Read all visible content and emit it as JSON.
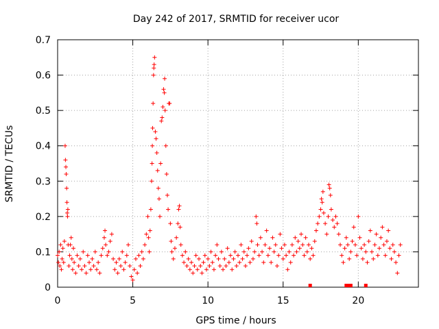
{
  "chart_data": {
    "type": "scatter",
    "title": "Day 242 of 2017, SRMTID for receiver ucor",
    "xlabel": "GPS time / hours",
    "ylabel": "SRMTID / TECUs",
    "xlim": [
      0,
      24
    ],
    "ylim": [
      0,
      0.7
    ],
    "grid": true,
    "marker": "+",
    "x_ticks": [
      0,
      5,
      10,
      15,
      20
    ],
    "x_tick_labels": [
      "0",
      "5",
      "10",
      "15",
      "20"
    ],
    "y_ticks": [
      0,
      0.1,
      0.2,
      0.3,
      0.4,
      0.5,
      0.6,
      0.7
    ],
    "y_tick_labels": [
      "0",
      "0.1",
      "0.2",
      "0.3",
      "0.4",
      "0.5",
      "0.6",
      "0.7"
    ],
    "series": [
      {
        "name": "SRMTID",
        "color": "#ff0000",
        "points": [
          [
            0.0,
            0.09
          ],
          [
            0.05,
            0.07
          ],
          [
            0.1,
            0.1
          ],
          [
            0.15,
            0.06
          ],
          [
            0.2,
            0.12
          ],
          [
            0.25,
            0.05
          ],
          [
            0.3,
            0.08
          ],
          [
            0.35,
            0.11
          ],
          [
            0.4,
            0.07
          ],
          [
            0.45,
            0.13
          ],
          [
            0.5,
            0.4
          ],
          [
            0.52,
            0.36
          ],
          [
            0.55,
            0.34
          ],
          [
            0.57,
            0.32
          ],
          [
            0.6,
            0.28
          ],
          [
            0.62,
            0.24
          ],
          [
            0.64,
            0.21
          ],
          [
            0.66,
            0.2
          ],
          [
            0.68,
            0.22
          ],
          [
            0.7,
            0.12
          ],
          [
            0.75,
            0.06
          ],
          [
            0.8,
            0.09
          ],
          [
            0.85,
            0.12
          ],
          [
            0.9,
            0.14
          ],
          [
            0.95,
            0.08
          ],
          [
            1.0,
            0.05
          ],
          [
            1.05,
            0.11
          ],
          [
            1.1,
            0.07
          ],
          [
            1.2,
            0.04
          ],
          [
            1.3,
            0.09
          ],
          [
            1.4,
            0.06
          ],
          [
            1.5,
            0.08
          ],
          [
            1.6,
            0.05
          ],
          [
            1.7,
            0.1
          ],
          [
            1.8,
            0.06
          ],
          [
            1.9,
            0.04
          ],
          [
            2.0,
            0.09
          ],
          [
            2.1,
            0.07
          ],
          [
            2.2,
            0.05
          ],
          [
            2.3,
            0.08
          ],
          [
            2.4,
            0.06
          ],
          [
            2.5,
            0.1
          ],
          [
            2.6,
            0.05
          ],
          [
            2.7,
            0.07
          ],
          [
            2.8,
            0.04
          ],
          [
            2.9,
            0.09
          ],
          [
            3.0,
            0.11
          ],
          [
            3.1,
            0.14
          ],
          [
            3.15,
            0.16
          ],
          [
            3.2,
            0.12
          ],
          [
            3.3,
            0.09
          ],
          [
            3.4,
            0.1
          ],
          [
            3.5,
            0.13
          ],
          [
            3.6,
            0.15
          ],
          [
            3.7,
            0.08
          ],
          [
            3.8,
            0.05
          ],
          [
            3.9,
            0.07
          ],
          [
            4.0,
            0.04
          ],
          [
            4.1,
            0.08
          ],
          [
            4.2,
            0.06
          ],
          [
            4.3,
            0.1
          ],
          [
            4.4,
            0.05
          ],
          [
            4.5,
            0.07
          ],
          [
            4.6,
            0.09
          ],
          [
            4.7,
            0.12
          ],
          [
            4.8,
            0.06
          ],
          [
            4.9,
            0.03
          ],
          [
            5.0,
            0.02
          ],
          [
            5.1,
            0.05
          ],
          [
            5.2,
            0.08
          ],
          [
            5.3,
            0.04
          ],
          [
            5.4,
            0.09
          ],
          [
            5.5,
            0.06
          ],
          [
            5.6,
            0.1
          ],
          [
            5.7,
            0.08
          ],
          [
            5.8,
            0.12
          ],
          [
            5.9,
            0.15
          ],
          [
            6.0,
            0.2
          ],
          [
            6.05,
            0.14
          ],
          [
            6.1,
            0.1
          ],
          [
            6.15,
            0.16
          ],
          [
            6.2,
            0.22
          ],
          [
            6.25,
            0.3
          ],
          [
            6.28,
            0.35
          ],
          [
            6.3,
            0.4
          ],
          [
            6.32,
            0.45
          ],
          [
            6.35,
            0.52
          ],
          [
            6.38,
            0.6
          ],
          [
            6.4,
            0.62
          ],
          [
            6.42,
            0.63
          ],
          [
            6.45,
            0.65
          ],
          [
            6.5,
            0.44
          ],
          [
            6.55,
            0.42
          ],
          [
            6.6,
            0.38
          ],
          [
            6.65,
            0.33
          ],
          [
            6.7,
            0.28
          ],
          [
            6.75,
            0.25
          ],
          [
            6.8,
            0.2
          ],
          [
            6.85,
            0.35
          ],
          [
            6.9,
            0.47
          ],
          [
            6.95,
            0.48
          ],
          [
            7.0,
            0.51
          ],
          [
            7.05,
            0.56
          ],
          [
            7.1,
            0.55
          ],
          [
            7.12,
            0.59
          ],
          [
            7.15,
            0.5
          ],
          [
            7.2,
            0.4
          ],
          [
            7.25,
            0.32
          ],
          [
            7.3,
            0.26
          ],
          [
            7.35,
            0.22
          ],
          [
            7.4,
            0.52
          ],
          [
            7.45,
            0.52
          ],
          [
            7.5,
            0.18
          ],
          [
            7.55,
            0.13
          ],
          [
            7.6,
            0.1
          ],
          [
            7.7,
            0.08
          ],
          [
            7.8,
            0.11
          ],
          [
            7.9,
            0.14
          ],
          [
            8.0,
            0.18
          ],
          [
            8.05,
            0.22
          ],
          [
            8.1,
            0.23
          ],
          [
            8.15,
            0.17
          ],
          [
            8.2,
            0.12
          ],
          [
            8.3,
            0.09
          ],
          [
            8.4,
            0.07
          ],
          [
            8.5,
            0.1
          ],
          [
            8.6,
            0.06
          ],
          [
            8.7,
            0.08
          ],
          [
            8.8,
            0.05
          ],
          [
            8.9,
            0.07
          ],
          [
            9.0,
            0.04
          ],
          [
            9.1,
            0.06
          ],
          [
            9.2,
            0.09
          ],
          [
            9.3,
            0.05
          ],
          [
            9.4,
            0.08
          ],
          [
            9.5,
            0.06
          ],
          [
            9.6,
            0.04
          ],
          [
            9.7,
            0.07
          ],
          [
            9.8,
            0.09
          ],
          [
            9.9,
            0.05
          ],
          [
            10.0,
            0.08
          ],
          [
            10.1,
            0.06
          ],
          [
            10.2,
            0.1
          ],
          [
            10.3,
            0.07
          ],
          [
            10.4,
            0.05
          ],
          [
            10.5,
            0.09
          ],
          [
            10.6,
            0.12
          ],
          [
            10.7,
            0.08
          ],
          [
            10.8,
            0.06
          ],
          [
            10.9,
            0.1
          ],
          [
            11.0,
            0.05
          ],
          [
            11.1,
            0.08
          ],
          [
            11.2,
            0.06
          ],
          [
            11.3,
            0.11
          ],
          [
            11.4,
            0.07
          ],
          [
            11.5,
            0.09
          ],
          [
            11.6,
            0.05
          ],
          [
            11.7,
            0.08
          ],
          [
            11.8,
            0.1
          ],
          [
            11.9,
            0.06
          ],
          [
            12.0,
            0.09
          ],
          [
            12.1,
            0.07
          ],
          [
            12.2,
            0.12
          ],
          [
            12.3,
            0.08
          ],
          [
            12.4,
            0.1
          ],
          [
            12.5,
            0.06
          ],
          [
            12.6,
            0.09
          ],
          [
            12.7,
            0.11
          ],
          [
            12.8,
            0.07
          ],
          [
            12.9,
            0.13
          ],
          [
            13.0,
            0.08
          ],
          [
            13.1,
            0.1
          ],
          [
            13.2,
            0.2
          ],
          [
            13.25,
            0.18
          ],
          [
            13.3,
            0.12
          ],
          [
            13.4,
            0.09
          ],
          [
            13.5,
            0.14
          ],
          [
            13.6,
            0.1
          ],
          [
            13.7,
            0.07
          ],
          [
            13.8,
            0.12
          ],
          [
            13.9,
            0.16
          ],
          [
            14.0,
            0.09
          ],
          [
            14.1,
            0.11
          ],
          [
            14.2,
            0.07
          ],
          [
            14.3,
            0.14
          ],
          [
            14.4,
            0.1
          ],
          [
            14.5,
            0.12
          ],
          [
            14.6,
            0.06
          ],
          [
            14.7,
            0.09
          ],
          [
            14.8,
            0.15
          ],
          [
            14.9,
            0.11
          ],
          [
            15.0,
            0.08
          ],
          [
            15.1,
            0.12
          ],
          [
            15.2,
            0.09
          ],
          [
            15.3,
            0.05
          ],
          [
            15.4,
            0.1
          ],
          [
            15.5,
            0.07
          ],
          [
            15.6,
            0.12
          ],
          [
            15.7,
            0.09
          ],
          [
            15.8,
            0.14
          ],
          [
            15.9,
            0.1
          ],
          [
            16.0,
            0.13
          ],
          [
            16.1,
            0.11
          ],
          [
            16.2,
            0.15
          ],
          [
            16.3,
            0.12
          ],
          [
            16.4,
            0.09
          ],
          [
            16.5,
            0.14
          ],
          [
            16.6,
            0.1
          ],
          [
            16.7,
            0.12
          ],
          [
            16.8,
            0.08
          ],
          [
            16.9,
            0.11
          ],
          [
            17.0,
            0.09
          ],
          [
            17.1,
            0.13
          ],
          [
            17.2,
            0.16
          ],
          [
            17.3,
            0.18
          ],
          [
            17.4,
            0.2
          ],
          [
            17.5,
            0.22
          ],
          [
            17.55,
            0.25
          ],
          [
            17.6,
            0.24
          ],
          [
            17.65,
            0.27
          ],
          [
            17.7,
            0.21
          ],
          [
            17.8,
            0.18
          ],
          [
            17.9,
            0.15
          ],
          [
            18.0,
            0.2
          ],
          [
            18.05,
            0.29
          ],
          [
            18.1,
            0.28
          ],
          [
            18.15,
            0.26
          ],
          [
            18.2,
            0.22
          ],
          [
            18.3,
            0.19
          ],
          [
            18.4,
            0.17
          ],
          [
            18.5,
            0.2
          ],
          [
            18.6,
            0.18
          ],
          [
            18.7,
            0.15
          ],
          [
            18.8,
            0.12
          ],
          [
            18.9,
            0.09
          ],
          [
            19.0,
            0.07
          ],
          [
            19.1,
            0.11
          ],
          [
            19.2,
            0.14
          ],
          [
            19.3,
            0.12
          ],
          [
            19.4,
            0.08
          ],
          [
            19.5,
            0.1
          ],
          [
            19.6,
            0.13
          ],
          [
            19.7,
            0.17
          ],
          [
            19.8,
            0.12
          ],
          [
            19.9,
            0.09
          ],
          [
            20.0,
            0.2
          ],
          [
            20.1,
            0.14
          ],
          [
            20.2,
            0.11
          ],
          [
            20.3,
            0.08
          ],
          [
            20.4,
            0.12
          ],
          [
            20.5,
            0.1
          ],
          [
            20.6,
            0.07
          ],
          [
            20.7,
            0.13
          ],
          [
            20.8,
            0.16
          ],
          [
            20.9,
            0.1
          ],
          [
            21.0,
            0.08
          ],
          [
            21.1,
            0.12
          ],
          [
            21.2,
            0.15
          ],
          [
            21.3,
            0.09
          ],
          [
            21.4,
            0.11
          ],
          [
            21.5,
            0.14
          ],
          [
            21.6,
            0.17
          ],
          [
            21.7,
            0.12
          ],
          [
            21.8,
            0.09
          ],
          [
            21.9,
            0.13
          ],
          [
            22.0,
            0.16
          ],
          [
            22.1,
            0.11
          ],
          [
            22.2,
            0.08
          ],
          [
            22.3,
            0.12
          ],
          [
            22.4,
            0.1
          ],
          [
            22.5,
            0.07
          ],
          [
            22.6,
            0.04
          ],
          [
            22.7,
            0.09
          ],
          [
            22.8,
            0.12
          ]
        ]
      }
    ],
    "baseline_markers_x": [
      16.8,
      19.2,
      19.3,
      19.4,
      19.5,
      20.5
    ]
  }
}
